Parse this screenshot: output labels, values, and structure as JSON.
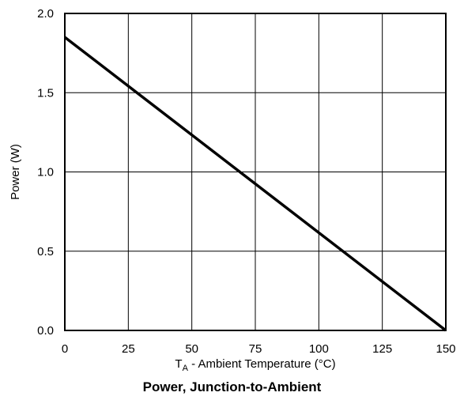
{
  "chart_data": {
    "type": "line",
    "title": "Power, Junction-to-Ambient",
    "xlabel_main": "T",
    "xlabel_sub": "A",
    "xlabel_rest": " - Ambient Temperature (°C)",
    "ylabel": "Power (W)",
    "xlim": [
      0,
      150
    ],
    "ylim": [
      0,
      2.0
    ],
    "x_ticks": [
      0,
      25,
      50,
      75,
      100,
      125,
      150
    ],
    "x_tick_labels": [
      "0",
      "25",
      "50",
      "75",
      "100",
      "125",
      "150"
    ],
    "y_ticks": [
      0,
      0.5,
      1.0,
      1.5,
      2.0
    ],
    "y_tick_labels": [
      "0.0",
      "0.5",
      "1.0",
      "1.5",
      "2.0"
    ],
    "grid": true,
    "series": [
      {
        "x": [
          0,
          150
        ],
        "y": [
          1.85,
          0.0
        ],
        "color": "#000000"
      }
    ]
  }
}
